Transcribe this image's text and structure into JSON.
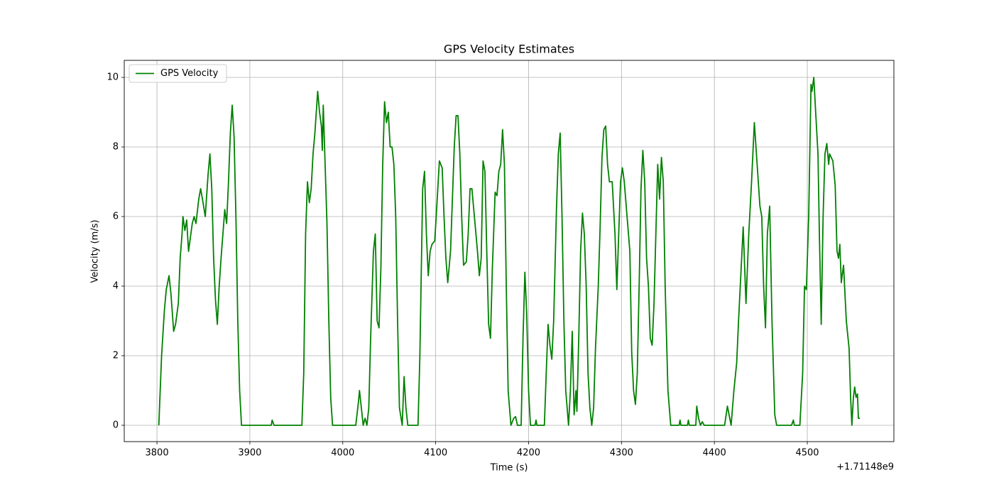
{
  "chart_data": {
    "type": "line",
    "title": "GPS Velocity Estimates",
    "x_label": "Time (s)",
    "y_label": "Velocity (m/s)",
    "x_offset_label": "+1.71148e9",
    "xlim": [
      3764.8,
      4593.2
    ],
    "xticks": [
      3800,
      3900,
      4000,
      4100,
      4200,
      4300,
      4400,
      4500
    ],
    "ylim": [
      -0.47,
      10.49
    ],
    "yticks": [
      0,
      2,
      4,
      6,
      8,
      10
    ],
    "grid": true,
    "legend": "upper left",
    "x": [
      3802,
      3805,
      3808,
      3810,
      3813,
      3815,
      3818,
      3820,
      3823,
      3825,
      3827,
      3828,
      3830,
      3832,
      3834,
      3836,
      3838,
      3840,
      3842,
      3845,
      3847,
      3849,
      3852,
      3855,
      3857,
      3859,
      3861,
      3863,
      3865,
      3867,
      3869,
      3871,
      3873,
      3875,
      3877,
      3879,
      3881,
      3883,
      3885,
      3887,
      3889,
      3891,
      3923,
      3924,
      3926,
      3956,
      3958,
      3960,
      3962,
      3964,
      3966,
      3968,
      3970,
      3973,
      3975,
      3977,
      3978,
      3979,
      3981,
      3983,
      3985,
      3987,
      3989,
      4014,
      4017,
      4018,
      4020,
      4022,
      4024,
      4026,
      4028,
      4030,
      4033,
      4035,
      4037,
      4039,
      4041,
      4043,
      4045,
      4047,
      4049,
      4051,
      4053,
      4055,
      4057,
      4059,
      4061,
      4064,
      4066,
      4068,
      4070,
      4081,
      4083,
      4086,
      4088,
      4090,
      4092,
      4094,
      4096,
      4099,
      4101,
      4104,
      4107,
      4109,
      4111,
      4113,
      4116,
      4118,
      4120,
      4122,
      4124,
      4126,
      4128,
      4130,
      4133,
      4135,
      4137,
      4139,
      4145,
      4147,
      4149,
      4151,
      4153,
      4155,
      4157,
      4159,
      4161,
      4164,
      4166,
      4168,
      4170,
      4172,
      4174,
      4176,
      4178,
      4181,
      4184,
      4186,
      4188,
      4192,
      4194,
      4196,
      4198,
      4200,
      4202,
      4207,
      4208,
      4209,
      4217,
      4219,
      4221,
      4223,
      4225,
      4227,
      4230,
      4232,
      4234,
      4236,
      4238,
      4240,
      4243,
      4245,
      4247,
      4249,
      4251,
      4252,
      4254,
      4256,
      4258,
      4260,
      4262,
      4264,
      4266,
      4268,
      4270,
      4272,
      4275,
      4277,
      4279,
      4281,
      4283,
      4285,
      4287,
      4290,
      4293,
      4295,
      4297,
      4299,
      4301,
      4303,
      4309,
      4311,
      4313,
      4315,
      4317,
      4319,
      4321,
      4323,
      4325,
      4327,
      4329,
      4331,
      4333,
      4335,
      4337,
      4339,
      4341,
      4343,
      4345,
      4347,
      4350,
      4353,
      4362,
      4363,
      4364,
      4371,
      4372,
      4373,
      4380,
      4381,
      4383,
      4385,
      4387,
      4389,
      4411,
      4414,
      4418,
      4421,
      4424,
      4426,
      4431,
      4434,
      4437,
      4440,
      4443,
      4446,
      4449,
      4451,
      4453,
      4455,
      4457,
      4459.5,
      4462,
      4465,
      4467,
      4483,
      4485,
      4486,
      4492,
      4495,
      4497,
      4499,
      4501.5,
      4504,
      4505,
      4507,
      4509,
      4511.5,
      4513,
      4515,
      4517,
      4519,
      4521,
      4523,
      4524,
      4527.5,
      4530,
      4532,
      4533.6,
      4535,
      4536.6,
      4537.5,
      4539,
      4542,
      4545,
      4546.6,
      4548,
      4549.6,
      4551,
      4552.5,
      4554,
      4555,
      4556.5
    ],
    "series": [
      {
        "name": "GPS Velocity",
        "color": "#008000",
        "values": [
          0,
          2,
          3.3,
          3.9,
          4.3,
          3.8,
          2.7,
          2.9,
          3.5,
          4.8,
          5.5,
          6.0,
          5.6,
          5.9,
          5.0,
          5.4,
          5.8,
          6.0,
          5.8,
          6.5,
          6.8,
          6.5,
          6.0,
          7.2,
          7.8,
          6.8,
          4.8,
          3.6,
          2.9,
          4.0,
          4.8,
          5.5,
          6.2,
          5.8,
          7.0,
          8.4,
          9.2,
          8.3,
          6.0,
          3.0,
          1.0,
          0,
          0,
          0.15,
          0,
          0,
          1.5,
          5.5,
          7.0,
          6.4,
          6.8,
          7.8,
          8.4,
          9.6,
          9.0,
          8.6,
          7.9,
          9.2,
          7.5,
          5.8,
          3.0,
          0.8,
          0,
          0,
          0.7,
          1.0,
          0.5,
          0,
          0.2,
          0,
          0.5,
          2.5,
          5.0,
          5.5,
          3.0,
          2.8,
          4.5,
          7.5,
          9.3,
          8.7,
          9.0,
          8.0,
          8.0,
          7.5,
          6.0,
          3.0,
          0.5,
          0,
          1.4,
          0.5,
          0,
          0,
          2.0,
          6.8,
          7.3,
          5.5,
          4.3,
          5.0,
          5.2,
          5.3,
          6.2,
          7.6,
          7.4,
          6.0,
          4.8,
          4.1,
          5.0,
          6.5,
          8.0,
          8.9,
          8.9,
          7.8,
          6.0,
          4.6,
          4.7,
          5.5,
          6.8,
          6.8,
          5.0,
          4.3,
          4.8,
          7.6,
          7.3,
          5.0,
          2.9,
          2.5,
          4.5,
          6.7,
          6.6,
          7.3,
          7.5,
          8.5,
          7.5,
          4.0,
          1.0,
          0,
          0.2,
          0.25,
          0,
          0,
          2.5,
          4.4,
          3.2,
          1.0,
          0,
          0,
          0.15,
          0,
          0,
          1.5,
          2.9,
          2.3,
          1.9,
          3.0,
          6.2,
          7.8,
          8.4,
          6.0,
          3.0,
          1.0,
          0,
          1.0,
          2.7,
          0.3,
          1.0,
          0.4,
          2.5,
          5.0,
          6.1,
          5.5,
          4.0,
          1.5,
          0.5,
          0,
          0.5,
          2.2,
          4.0,
          5.7,
          7.7,
          8.5,
          8.6,
          7.5,
          7.0,
          7.0,
          5.5,
          3.9,
          5.5,
          7.0,
          7.4,
          7.0,
          5.0,
          2.1,
          1.0,
          0.6,
          1.5,
          4.0,
          6.8,
          7.9,
          7.0,
          4.8,
          4.0,
          2.5,
          2.3,
          3.5,
          5.5,
          7.5,
          6.5,
          7.7,
          7.0,
          4.0,
          1.0,
          0,
          0,
          0.15,
          0,
          0,
          0.15,
          0,
          0,
          0.55,
          0.2,
          0,
          0.1,
          0,
          0,
          0.55,
          0,
          1.0,
          1.8,
          3.0,
          5.7,
          3.5,
          5.5,
          7.0,
          8.7,
          7.5,
          6.3,
          6.0,
          4.0,
          2.8,
          5.5,
          6.3,
          3.0,
          0.3,
          0,
          0,
          0.15,
          0,
          0,
          1.5,
          4.0,
          3.9,
          6.0,
          9.8,
          9.6,
          10.0,
          9.0,
          7.8,
          5.5,
          2.9,
          6.0,
          7.8,
          8.1,
          7.5,
          7.8,
          7.6,
          6.9,
          5.0,
          4.8,
          5.2,
          4.1,
          4.3,
          4.6,
          3.0,
          2.2,
          0.8,
          0,
          0.8,
          1.1,
          0.8,
          0.9,
          0.2,
          0.2
        ]
      }
    ]
  }
}
